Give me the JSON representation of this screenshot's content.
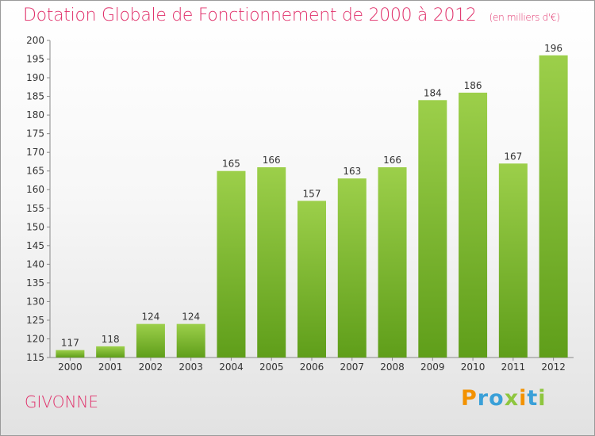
{
  "title": "Dotation Globale de Fonctionnement de 2000 à 2012",
  "subtitle": "(en milliers d'€)",
  "commune": "GIVONNE",
  "logo": {
    "text": "Proxiti",
    "letters": [
      {
        "ch": "P",
        "color": "#f39200"
      },
      {
        "ch": "r",
        "color": "#3aa0d8"
      },
      {
        "ch": "o",
        "color": "#3aa0d8"
      },
      {
        "ch": "x",
        "color": "#8ec63f"
      },
      {
        "ch": "i",
        "color": "#f39200"
      },
      {
        "ch": "t",
        "color": "#3aa0d8"
      },
      {
        "ch": "i",
        "color": "#8ec63f"
      }
    ]
  },
  "colors": {
    "accent": "#e0306a",
    "bar_light": "#9ccf4a",
    "bar_dark": "#5f9e1a"
  },
  "chart_data": {
    "type": "bar",
    "title": "Dotation Globale de Fonctionnement de 2000 à 2012",
    "subtitle": "(en milliers d'€)",
    "categories": [
      "2000",
      "2001",
      "2002",
      "2003",
      "2004",
      "2005",
      "2006",
      "2007",
      "2008",
      "2009",
      "2010",
      "2011",
      "2012"
    ],
    "values": [
      117,
      118,
      124,
      124,
      165,
      166,
      157,
      163,
      166,
      184,
      186,
      167,
      196
    ],
    "ylim": [
      115,
      200
    ],
    "yticks": [
      115,
      120,
      125,
      130,
      135,
      140,
      145,
      150,
      155,
      160,
      165,
      170,
      175,
      180,
      185,
      190,
      195,
      200
    ],
    "grid": false,
    "xlabel": "",
    "ylabel": ""
  }
}
